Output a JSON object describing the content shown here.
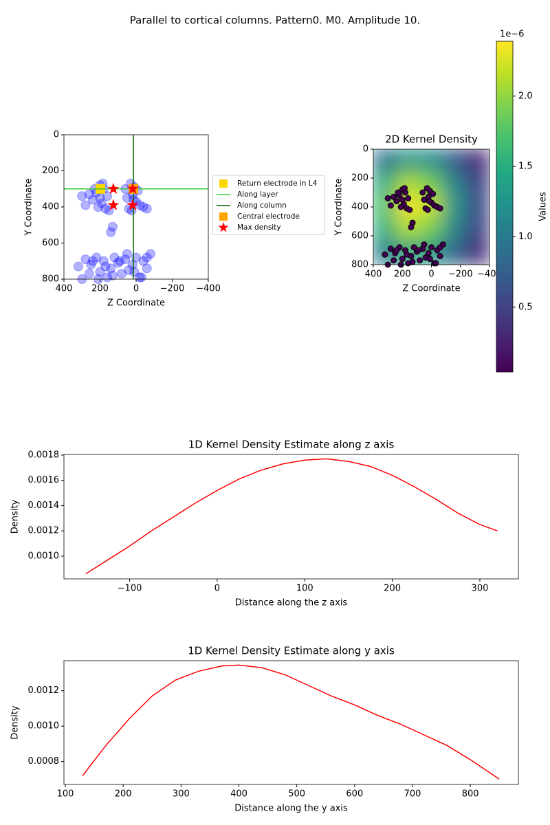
{
  "title": "Parallel to cortical columns. Pattern0. M0. Amplitude 10.",
  "chart_data": [
    {
      "type": "scatter",
      "xlabel": "Z Coordinate",
      "ylabel": "Y Coordinate",
      "xlim": [
        400,
        -400
      ],
      "ylim": [
        800,
        0
      ],
      "xticks": [
        400,
        200,
        0,
        {
          "value": -200,
          "label": "−200"
        },
        {
          "value": -400,
          "label": "−400"
        }
      ],
      "yticks": [
        0,
        200,
        400,
        600,
        800
      ],
      "legend": "outside right",
      "series": [
        {
          "marker": "circle",
          "color": "#0000ff",
          "x": [
            200,
            180,
            220,
            160,
            240,
            190,
            210,
            170,
            260,
            280,
            150,
            230,
            200,
            185,
            30,
            10,
            -10,
            20,
            50,
            0,
            -20,
            40,
            60,
            -40,
            25,
            15,
            -60,
            130,
            140,
            300,
            320,
            300,
            280,
            250,
            220,
            200,
            180,
            160,
            140,
            120,
            100,
            80,
            60,
            40,
            20,
            0,
            -20,
            -40,
            -60,
            -80,
            260,
            210,
            170,
            130,
            90,
            50,
            10,
            -30,
            -60,
            240
          ],
          "y": [
            280,
            300,
            320,
            340,
            360,
            380,
            400,
            410,
            330,
            390,
            420,
            300,
            350,
            270,
            270,
            290,
            310,
            330,
            350,
            370,
            390,
            410,
            300,
            400,
            420,
            360,
            410,
            510,
            540,
            340,
            730,
            800,
            690,
            720,
            680,
            760,
            700,
            790,
            740,
            680,
            710,
            770,
            690,
            750,
            720,
            680,
            790,
            700,
            740,
            660,
            770,
            800,
            730,
            780,
            700,
            660,
            760,
            790,
            680,
            700
          ]
        },
        {
          "name": "Return electrode in L4",
          "marker": "square",
          "color": "#ffd700",
          "x": [
            198
          ],
          "y": [
            300
          ]
        },
        {
          "name": "Along layer",
          "marker": "hline",
          "color": "#32cd32",
          "y": [
            300
          ]
        },
        {
          "name": "Along column",
          "marker": "vline",
          "color": "#006400",
          "x": [
            15
          ]
        },
        {
          "name": "Central electrode",
          "marker": "square",
          "color": "#ffa500",
          "x": [
            15
          ],
          "y": [
            300
          ]
        },
        {
          "name": "Max density",
          "marker": "star",
          "color": "#ff0000",
          "x": [
            126,
            19,
            126,
            19
          ],
          "y": [
            300,
            300,
            390,
            390
          ]
        }
      ]
    },
    {
      "type": "heatmap",
      "title": "2D Kernel Density",
      "xlabel": "Z Coordinate",
      "ylabel": "Y Coordinate",
      "xlim": [
        400,
        -400
      ],
      "ylim": [
        800,
        0
      ],
      "xticks": [
        400,
        200,
        0,
        {
          "value": -200,
          "label": "−200"
        },
        {
          "value": -400,
          "label": "−400"
        }
      ],
      "yticks": [
        0,
        200,
        400,
        600,
        800
      ],
      "colormap": "viridis",
      "x": [
        320,
        160,
        0,
        -160,
        -320
      ],
      "y": [
        80,
        240,
        400,
        560,
        720
      ],
      "values": [
        [
          0.9,
          1.3,
          1.2,
          0.7,
          0.3
        ],
        [
          1.5,
          2.1,
          1.9,
          1.1,
          0.5
        ],
        [
          1.7,
          2.35,
          2.2,
          1.3,
          0.6
        ],
        [
          1.5,
          2.1,
          1.9,
          1.1,
          0.5
        ],
        [
          1.0,
          1.4,
          1.3,
          0.8,
          0.35
        ]
      ],
      "colorbar": {
        "label": "Values",
        "offset_label": "1e−6",
        "lim": [
          0.04,
          2.39
        ],
        "ticks": [
          0.5,
          {
            "value": 1,
            "label": "1.0"
          },
          1.5,
          {
            "value": 2,
            "label": "2.0"
          }
        ]
      },
      "series": [
        {
          "color": "#440154",
          "edgecolor": "#000000",
          "x": [
            200,
            180,
            220,
            160,
            240,
            190,
            210,
            170,
            260,
            280,
            150,
            230,
            200,
            185,
            30,
            10,
            -10,
            20,
            50,
            0,
            -20,
            40,
            60,
            -40,
            25,
            15,
            -60,
            130,
            140,
            300,
            320,
            300,
            280,
            250,
            220,
            200,
            180,
            160,
            140,
            120,
            100,
            80,
            60,
            40,
            20,
            0,
            -20,
            -40,
            -60,
            -80,
            260,
            210,
            170,
            130,
            90,
            50,
            10,
            -30,
            -60,
            240
          ],
          "y": [
            280,
            300,
            320,
            340,
            360,
            380,
            400,
            410,
            330,
            390,
            420,
            300,
            350,
            270,
            270,
            290,
            310,
            330,
            350,
            370,
            390,
            410,
            300,
            400,
            420,
            360,
            410,
            510,
            540,
            340,
            730,
            800,
            690,
            720,
            680,
            760,
            700,
            790,
            740,
            680,
            710,
            770,
            690,
            750,
            720,
            680,
            790,
            700,
            740,
            660,
            770,
            800,
            730,
            780,
            700,
            660,
            760,
            790,
            680,
            700
          ]
        }
      ]
    },
    {
      "type": "line",
      "title": "1D Kernel Density Estimate along z axis",
      "xlabel": "Distance along the z axis",
      "ylabel": "Density",
      "xlim": [
        -175,
        344
      ],
      "ylim": [
        0.00082,
        0.001805
      ],
      "xticks": [
        {
          "value": -100,
          "label": "−100"
        },
        0,
        100,
        200,
        300
      ],
      "yticks": [
        {
          "value": 0.001,
          "label": "0.0010"
        },
        {
          "value": 0.0012,
          "label": "0.0012"
        },
        {
          "value": 0.0014,
          "label": "0.0014"
        },
        {
          "value": 0.0016,
          "label": "0.0016"
        },
        {
          "value": 0.0018,
          "label": "0.0018"
        }
      ],
      "color": "#ff0000",
      "x": [
        -150,
        -125,
        -100,
        -75,
        -50,
        -25,
        0,
        25,
        50,
        75,
        100,
        125,
        150,
        175,
        200,
        225,
        250,
        275,
        300,
        320
      ],
      "values": [
        0.00086,
        0.00097,
        0.00108,
        0.0012,
        0.00131,
        0.00142,
        0.00152,
        0.00161,
        0.00168,
        0.00173,
        0.00176,
        0.00177,
        0.00175,
        0.00171,
        0.00164,
        0.00155,
        0.00145,
        0.00134,
        0.00125,
        0.0012
      ]
    },
    {
      "type": "line",
      "title": "1D Kernel Density Estimate along y axis",
      "xlabel": "Distance along the y axis",
      "ylabel": "Density",
      "xlim": [
        97.6,
        883
      ],
      "ylim": [
        0.00067,
        0.00137
      ],
      "xticks": [
        100,
        200,
        300,
        400,
        500,
        600,
        700,
        800
      ],
      "yticks": [
        {
          "value": 0.0008,
          "label": "0.0008"
        },
        {
          "value": 0.001,
          "label": "0.0010"
        },
        {
          "value": 0.0012,
          "label": "0.0012"
        }
      ],
      "color": "#ff0000",
      "x": [
        130,
        170,
        210,
        250,
        290,
        330,
        370,
        400,
        440,
        480,
        520,
        560,
        600,
        640,
        680,
        720,
        760,
        800,
        850
      ],
      "values": [
        0.00072,
        0.00089,
        0.00104,
        0.00117,
        0.00126,
        0.00131,
        0.00134,
        0.001345,
        0.00133,
        0.00129,
        0.00123,
        0.00117,
        0.00112,
        0.00106,
        0.00101,
        0.00095,
        0.00089,
        0.00081,
        0.0007
      ]
    }
  ]
}
